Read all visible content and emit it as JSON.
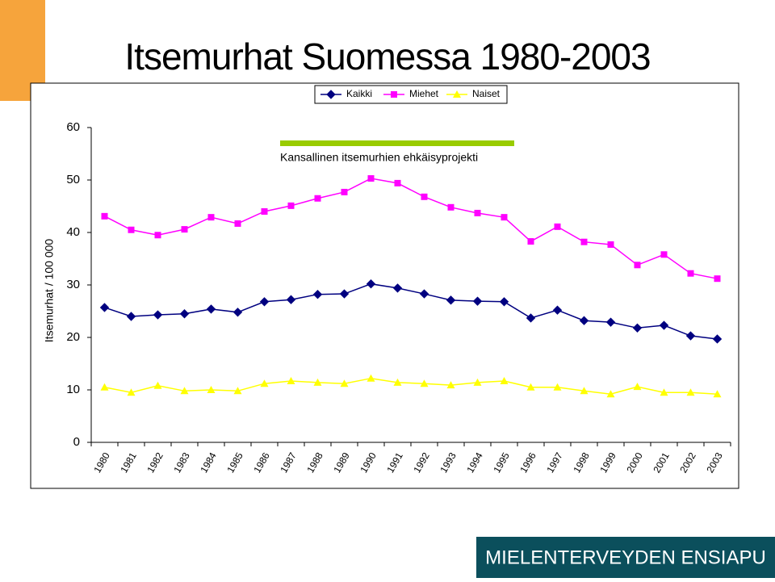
{
  "chart_data": {
    "type": "line",
    "title": "Itsemurhat Suomessa 1980-2003",
    "y_label": "Itsemurhat / 100 000",
    "categories": [
      "1980",
      "1981",
      "1982",
      "1983",
      "1984",
      "1985",
      "1986",
      "1987",
      "1988",
      "1989",
      "1990",
      "1991",
      "1992",
      "1993",
      "1994",
      "1995",
      "1996",
      "1997",
      "1998",
      "1999",
      "2000",
      "2001",
      "2002",
      "2003"
    ],
    "series": [
      {
        "name": "Kaikki",
        "color": "#000080",
        "marker": "diamond",
        "values": [
          25.7,
          24.0,
          24.3,
          24.5,
          25.4,
          24.8,
          26.8,
          27.2,
          28.2,
          28.3,
          30.2,
          29.4,
          28.3,
          27.1,
          26.9,
          26.8,
          23.7,
          25.2,
          23.2,
          22.9,
          21.8,
          22.3,
          20.3,
          19.7
        ]
      },
      {
        "name": "Miehet",
        "color": "#ff00ff",
        "marker": "square",
        "values": [
          43.1,
          40.5,
          39.5,
          40.6,
          42.9,
          41.7,
          44.0,
          45.1,
          46.5,
          47.7,
          50.3,
          49.4,
          46.8,
          44.8,
          43.7,
          42.9,
          38.3,
          41.1,
          38.2,
          37.7,
          33.8,
          35.8,
          32.2,
          31.2
        ]
      },
      {
        "name": "Naiset",
        "color": "#ffff00",
        "marker": "triangle",
        "values": [
          10.5,
          9.5,
          10.8,
          9.8,
          10.0,
          9.8,
          11.2,
          11.7,
          11.4,
          11.2,
          12.2,
          11.4,
          11.2,
          10.9,
          11.4,
          11.7,
          10.5,
          10.5,
          9.8,
          9.2,
          10.6,
          9.5,
          9.5,
          9.2
        ]
      }
    ],
    "ylim": [
      0,
      60
    ],
    "yticks": [
      0,
      10,
      20,
      30,
      40,
      50,
      60
    ],
    "annotation": {
      "text": "Kansallinen itsemurhien ehkäisyprojekti",
      "color": "#99cc00"
    }
  },
  "footer": "MIELENTERVEYDEN ENSIAPU"
}
